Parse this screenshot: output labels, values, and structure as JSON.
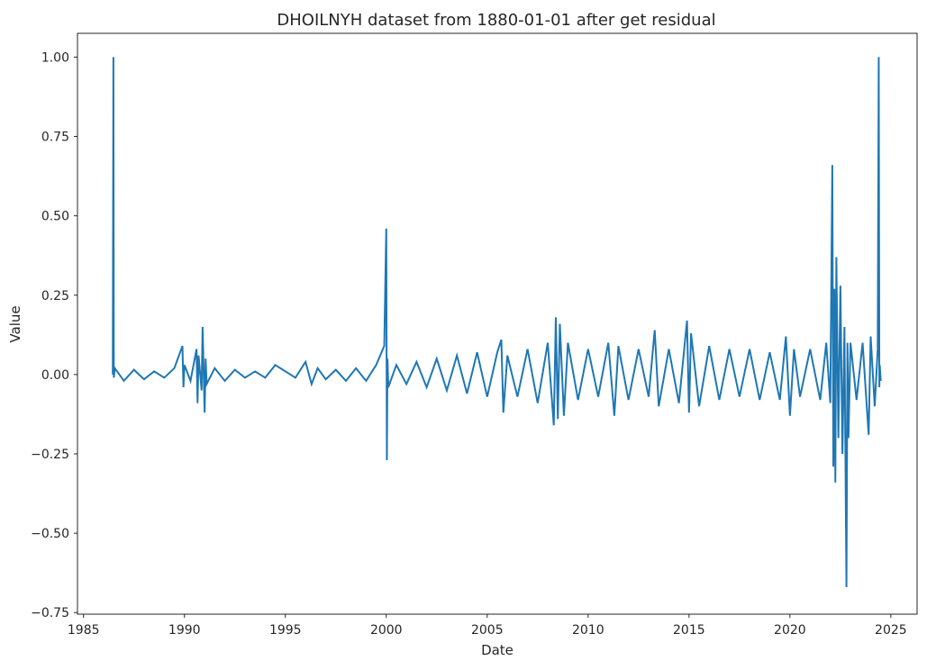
{
  "chart_data": {
    "type": "line",
    "title": "DHOILNYH dataset from 1880-01-01 after get residual",
    "xlabel": "Date",
    "ylabel": "Value",
    "xlim": [
      1984.7,
      2026.3
    ],
    "ylim": [
      -0.755,
      1.075
    ],
    "x_ticks": [
      1985,
      1990,
      1995,
      2000,
      2005,
      2010,
      2015,
      2020,
      2025
    ],
    "x_tick_labels": [
      "1985",
      "1990",
      "1995",
      "2000",
      "2005",
      "2010",
      "2015",
      "2020",
      "2025"
    ],
    "y_ticks": [
      1.0,
      0.75,
      0.5,
      0.25,
      0.0,
      -0.25,
      -0.5,
      -0.75
    ],
    "y_tick_labels": [
      "1.00",
      "0.75",
      "0.50",
      "0.25",
      "0.00",
      "−0.25",
      "−0.50",
      "−0.75"
    ],
    "grid": false,
    "legend": "none",
    "color": "#1f77b4",
    "series": [
      {
        "x": [
          1986.45,
          1986.48,
          1986.5,
          1986.55,
          1987.0,
          1987.5,
          1988.0,
          1988.5,
          1989.0,
          1989.5,
          1989.9,
          1989.95,
          1990.0,
          1990.3,
          1990.6,
          1990.65,
          1990.7,
          1990.85,
          1990.9,
          1991.0,
          1991.05,
          1991.1,
          1991.5,
          1992.0,
          1992.5,
          1993.0,
          1993.5,
          1994.0,
          1994.5,
          1995.0,
          1995.5,
          1996.0,
          1996.3,
          1996.6,
          1997.0,
          1997.5,
          1998.0,
          1998.5,
          1999.0,
          1999.5,
          1999.9,
          2000.0,
          2000.03,
          2000.06,
          2000.1,
          2000.5,
          2001.0,
          2001.5,
          2002.0,
          2002.5,
          2003.0,
          2003.5,
          2004.0,
          2004.5,
          2005.0,
          2005.5,
          2005.7,
          2005.8,
          2006.0,
          2006.5,
          2007.0,
          2007.5,
          2008.0,
          2008.3,
          2008.4,
          2008.5,
          2008.6,
          2008.8,
          2009.0,
          2009.5,
          2010.0,
          2010.5,
          2011.0,
          2011.3,
          2011.5,
          2012.0,
          2012.5,
          2013.0,
          2013.3,
          2013.5,
          2014.0,
          2014.5,
          2014.9,
          2015.0,
          2015.1,
          2015.5,
          2016.0,
          2016.5,
          2017.0,
          2017.5,
          2018.0,
          2018.5,
          2019.0,
          2019.5,
          2019.8,
          2020.0,
          2020.2,
          2020.5,
          2021.0,
          2021.5,
          2021.8,
          2022.0,
          2022.1,
          2022.15,
          2022.2,
          2022.25,
          2022.3,
          2022.4,
          2022.5,
          2022.6,
          2022.7,
          2022.8,
          2022.85,
          2022.9,
          2023.0,
          2023.3,
          2023.6,
          2023.9,
          2024.0,
          2024.2,
          2024.35,
          2024.4,
          2024.43,
          2024.45,
          2024.5
        ],
        "y": [
          0.0,
          1.0,
          -0.01,
          0.02,
          -0.02,
          0.015,
          -0.015,
          0.01,
          -0.01,
          0.02,
          0.09,
          -0.04,
          0.03,
          -0.02,
          0.08,
          -0.09,
          0.06,
          -0.05,
          0.15,
          -0.12,
          0.05,
          -0.03,
          0.02,
          -0.02,
          0.015,
          -0.01,
          0.01,
          -0.01,
          0.03,
          0.01,
          -0.01,
          0.04,
          -0.03,
          0.02,
          -0.015,
          0.015,
          -0.02,
          0.02,
          -0.02,
          0.03,
          0.09,
          0.46,
          -0.27,
          0.05,
          -0.04,
          0.03,
          -0.03,
          0.04,
          -0.04,
          0.05,
          -0.05,
          0.06,
          -0.06,
          0.07,
          -0.07,
          0.07,
          0.11,
          -0.12,
          0.06,
          -0.07,
          0.08,
          -0.09,
          0.1,
          -0.16,
          0.18,
          -0.14,
          0.16,
          -0.13,
          0.1,
          -0.08,
          0.08,
          -0.07,
          0.1,
          -0.13,
          0.09,
          -0.08,
          0.08,
          -0.07,
          0.14,
          -0.1,
          0.08,
          -0.09,
          0.17,
          -0.12,
          0.13,
          -0.1,
          0.09,
          -0.08,
          0.08,
          -0.07,
          0.08,
          -0.08,
          0.07,
          -0.08,
          0.12,
          -0.13,
          0.08,
          -0.07,
          0.08,
          -0.08,
          0.1,
          -0.09,
          0.66,
          -0.29,
          0.27,
          -0.34,
          0.37,
          -0.2,
          0.28,
          -0.25,
          0.15,
          -0.67,
          0.1,
          -0.2,
          0.1,
          -0.08,
          0.1,
          -0.19,
          0.12,
          -0.1,
          0.08,
          1.0,
          -0.04,
          0.03,
          -0.02
        ]
      }
    ]
  }
}
